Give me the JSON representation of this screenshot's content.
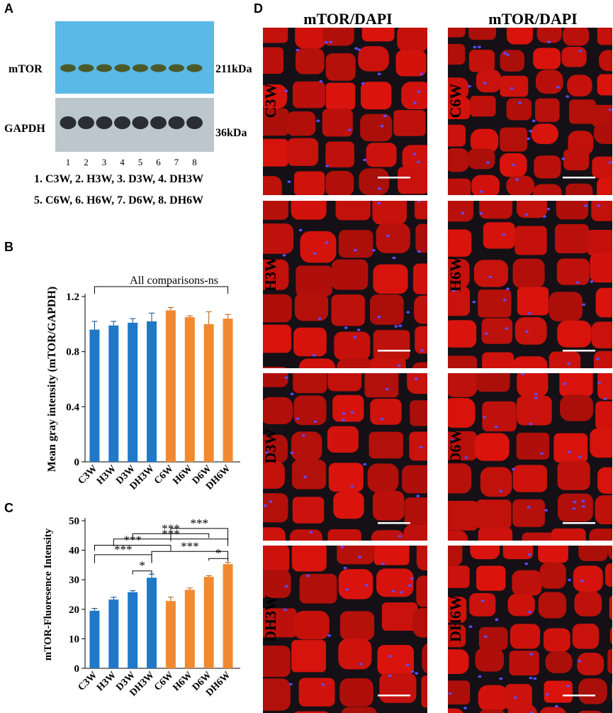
{
  "panels": {
    "A": "A",
    "B": "B",
    "C": "C",
    "D": "D"
  },
  "blot": {
    "bands": [
      {
        "name": "mTOR",
        "size": "211kDa"
      },
      {
        "name": "GAPDH",
        "size": "36kDa"
      }
    ],
    "lanes": [
      "1",
      "2",
      "3",
      "4",
      "5",
      "6",
      "7",
      "8"
    ],
    "legend_lines": [
      "1. C3W,  2. H3W,  3. D3W, 4. DH3W",
      "5. C6W, 6. H6W, 7. D6W, 8. DH6W"
    ],
    "colors": {
      "top_membrane": "#5ab9e6",
      "bottom_membrane": "#bcc6cd",
      "band_top": "#4a5a2a",
      "band_bottom": "#2a2e33"
    }
  },
  "colors": {
    "three_week": "#1f78c8",
    "six_week": "#f08a32"
  },
  "chart_data": [
    {
      "type": "bar",
      "categories": [
        "C3W",
        "H3W",
        "D3W",
        "DH3W",
        "C6W",
        "H6W",
        "D6W",
        "DH6W"
      ],
      "values": [
        0.96,
        0.99,
        1.01,
        1.02,
        1.1,
        1.05,
        1.0,
        1.04
      ],
      "errors": [
        0.06,
        0.03,
        0.03,
        0.06,
        0.02,
        0.01,
        0.09,
        0.03
      ],
      "title": "",
      "xlabel": "",
      "ylabel": "Mean gray intensity (mTOR/GAPDH)",
      "ylim": [
        0,
        1.2
      ],
      "yticks": [
        "0",
        "0.4",
        "0.8",
        "1.2"
      ],
      "annotation": "All comparisons-ns",
      "grid": false
    },
    {
      "type": "bar",
      "categories": [
        "C3W",
        "H3W",
        "D3W",
        "DH3W",
        "C6W",
        "H6W",
        "D6W",
        "DH6W"
      ],
      "values": [
        19.5,
        23.3,
        25.8,
        30.7,
        22.8,
        26.6,
        31.0,
        35.3
      ],
      "errors": [
        0.8,
        0.8,
        0.5,
        1.2,
        1.3,
        0.6,
        0.4,
        0.6
      ],
      "title": "",
      "xlabel": "",
      "ylabel": "mTOR-Fluoresence Intensity",
      "ylim": [
        0,
        50
      ],
      "yticks": [
        "0",
        "10",
        "20",
        "30",
        "40",
        "50"
      ],
      "significance": [
        {
          "from": "C3W",
          "to": "DH3W",
          "label": "***"
        },
        {
          "from": "H3W",
          "to": "DH6W",
          "label": "***"
        },
        {
          "from": "C6W",
          "to": "DH6W",
          "label": "***"
        },
        {
          "from": "D3W",
          "to": "DH3W",
          "label": "*"
        },
        {
          "from": "C3W",
          "to": "C6W",
          "label": "***"
        },
        {
          "from": "D3W",
          "to": "D6W",
          "label": "***"
        },
        {
          "from": "DH3W",
          "to": "DH6W",
          "label": "***"
        },
        {
          "from": "D6W",
          "to": "DH6W",
          "label": "*"
        }
      ],
      "grid": false
    }
  ],
  "micrographs": {
    "column_titles": [
      "mTOR/DAPI",
      "mTOR/DAPI"
    ],
    "left_labels": [
      "C3W",
      "H3W",
      "D3W",
      "DH3W"
    ],
    "right_labels": [
      "C6W",
      "H6W",
      "D6W",
      "DH6W"
    ],
    "colors": {
      "tissue": "#c8140c",
      "gap": "#141016",
      "nuclei": "#5a4cff"
    }
  }
}
